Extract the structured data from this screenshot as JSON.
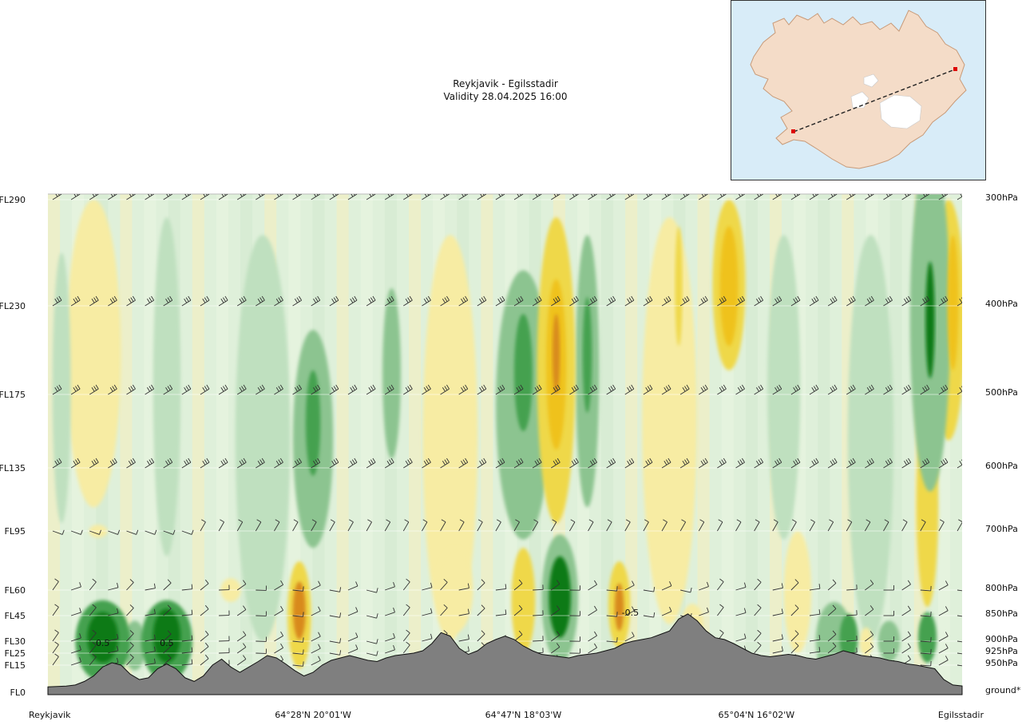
{
  "header": {
    "route": "Reykjavik - Egilsstadir",
    "validity": "Validity 28.04.2025 16:00"
  },
  "map": {
    "region": "Iceland",
    "route_start": "Reykjavik",
    "route_end": "Egilsstadir"
  },
  "chart_data": {
    "type": "heatmap",
    "title": "Reykjavik - Egilsstadir",
    "subtitle": "Validity 28.04.2025 16:00",
    "levels": [
      {
        "fl": "FL290",
        "hpa": "300hPa",
        "alt_ft": 29000
      },
      {
        "fl": "FL230",
        "hpa": "400hPa",
        "alt_ft": 23000
      },
      {
        "fl": "FL175",
        "hpa": "500hPa",
        "alt_ft": 17500
      },
      {
        "fl": "FL135",
        "hpa": "600hPa",
        "alt_ft": 13500
      },
      {
        "fl": "FL95",
        "hpa": "700hPa",
        "alt_ft": 9500
      },
      {
        "fl": "FL60",
        "hpa": "800hPa",
        "alt_ft": 6000
      },
      {
        "fl": "FL45",
        "hpa": "850hPa",
        "alt_ft": 4500
      },
      {
        "fl": "FL30",
        "hpa": "900hPa",
        "alt_ft": 3000
      },
      {
        "fl": "FL25",
        "hpa": "925hPa",
        "alt_ft": 2500
      },
      {
        "fl": "FL15",
        "hpa": "950hPa",
        "alt_ft": 1500
      },
      {
        "fl": "FL0",
        "hpa": "ground*",
        "alt_ft": 0
      }
    ],
    "x_ticks": [
      "Reykjavik",
      "64°28'N 20°01'W",
      "64°47'N 18°03'W",
      "65°04'N 16°02'W",
      "Egilsstadir"
    ],
    "x_tick_fractions": [
      0.0,
      0.29,
      0.52,
      0.775,
      1.0
    ],
    "terrain_ft": [
      300,
      320,
      340,
      400,
      600,
      900,
      1400,
      1700,
      1500,
      1000,
      700,
      800,
      1300,
      1600,
      1300,
      800,
      600,
      900,
      1500,
      2000,
      1400,
      1100,
      1400,
      1800,
      2300,
      2100,
      1600,
      1200,
      900,
      1100,
      1500,
      1900,
      2100,
      2300,
      2100,
      1900,
      1800,
      2100,
      2300,
      2400,
      2500,
      2600,
      2900,
      3500,
      3300,
      2700,
      2400,
      2600,
      2900,
      3100,
      3300,
      3100,
      2800,
      2600,
      2400,
      2300,
      2200,
      2100,
      2300,
      2400,
      2500,
      2600,
      2700,
      2900,
      3000,
      3100,
      3200,
      3400,
      3600,
      4300,
      4600,
      4200,
      3600,
      3200,
      3100,
      2900,
      2700,
      2500,
      2300,
      2200,
      2300,
      2400,
      2300,
      2100,
      2000,
      2200,
      2400,
      2600,
      2500,
      2300,
      2200,
      2100,
      1900,
      1800,
      1600,
      1500,
      1400,
      1300,
      700,
      400,
      350
    ],
    "contour_labels": [
      {
        "text": "0.5",
        "x": 0.06,
        "alt_ft": 2800
      },
      {
        "text": "0.5",
        "x": 0.13,
        "alt_ft": 2800
      },
      {
        "text": "-0.5",
        "x": 0.637,
        "alt_ft": 4500
      }
    ],
    "cells": [
      {
        "x": 0.06,
        "alt_ft": 3000,
        "rx": 0.03,
        "ry_ft": 2400,
        "value": 1.2
      },
      {
        "x": 0.06,
        "alt_ft": 3200,
        "rx": 0.017,
        "ry_ft": 1500,
        "value": 2.0
      },
      {
        "x": 0.13,
        "alt_ft": 3000,
        "rx": 0.028,
        "ry_ft": 2400,
        "value": 1.2
      },
      {
        "x": 0.13,
        "alt_ft": 3300,
        "rx": 0.015,
        "ry_ft": 1600,
        "value": 2.0
      },
      {
        "x": 0.095,
        "alt_ft": 2700,
        "rx": 0.012,
        "ry_ft": 1500,
        "value": 0.8
      },
      {
        "x": 0.055,
        "alt_ft": 9500,
        "rx": 0.01,
        "ry_ft": 400,
        "value": -0.6
      },
      {
        "x": 0.275,
        "alt_ft": 4500,
        "rx": 0.013,
        "ry_ft": 3200,
        "value": -1.0
      },
      {
        "x": 0.275,
        "alt_ft": 4800,
        "rx": 0.007,
        "ry_ft": 1700,
        "value": -1.8
      },
      {
        "x": 0.29,
        "alt_ft": 15000,
        "rx": 0.022,
        "ry_ft": 6500,
        "value": 0.9
      },
      {
        "x": 0.29,
        "alt_ft": 16000,
        "rx": 0.008,
        "ry_ft": 3000,
        "value": 1.6
      },
      {
        "x": 0.376,
        "alt_ft": 19000,
        "rx": 0.01,
        "ry_ft": 5000,
        "value": 0.7
      },
      {
        "x": 0.52,
        "alt_ft": 17000,
        "rx": 0.03,
        "ry_ft": 8000,
        "value": 0.9
      },
      {
        "x": 0.52,
        "alt_ft": 19000,
        "rx": 0.01,
        "ry_ft": 3500,
        "value": 1.6
      },
      {
        "x": 0.556,
        "alt_ft": 19000,
        "rx": 0.021,
        "ry_ft": 9000,
        "value": -1.0
      },
      {
        "x": 0.556,
        "alt_ft": 19500,
        "rx": 0.011,
        "ry_ft": 5000,
        "value": -1.6
      },
      {
        "x": 0.556,
        "alt_ft": 20000,
        "rx": 0.004,
        "ry_ft": 2500,
        "value": -2.3
      },
      {
        "x": 0.59,
        "alt_ft": 19000,
        "rx": 0.013,
        "ry_ft": 8000,
        "value": 0.8
      },
      {
        "x": 0.59,
        "alt_ft": 20000,
        "rx": 0.005,
        "ry_ft": 3500,
        "value": 1.4
      },
      {
        "x": 0.56,
        "alt_ft": 5500,
        "rx": 0.02,
        "ry_ft": 3800,
        "value": 1.1
      },
      {
        "x": 0.56,
        "alt_ft": 5600,
        "rx": 0.012,
        "ry_ft": 2400,
        "value": 2.0
      },
      {
        "x": 0.52,
        "alt_ft": 5500,
        "rx": 0.013,
        "ry_ft": 3000,
        "value": -0.9
      },
      {
        "x": 0.625,
        "alt_ft": 5200,
        "rx": 0.012,
        "ry_ft": 2500,
        "value": -1.1
      },
      {
        "x": 0.625,
        "alt_ft": 5000,
        "rx": 0.005,
        "ry_ft": 1400,
        "value": -2.0
      },
      {
        "x": 0.705,
        "alt_ft": 4000,
        "rx": 0.012,
        "ry_ft": 1200,
        "value": -0.6
      },
      {
        "x": 0.745,
        "alt_ft": 24000,
        "rx": 0.018,
        "ry_ft": 5000,
        "value": -0.7
      },
      {
        "x": 0.745,
        "alt_ft": 24000,
        "rx": 0.01,
        "ry_ft": 3500,
        "value": -1.2
      },
      {
        "x": 0.69,
        "alt_ft": 24000,
        "rx": 0.004,
        "ry_ft": 3500,
        "value": -0.7
      },
      {
        "x": 0.805,
        "alt_ft": 18000,
        "rx": 0.018,
        "ry_ft": 9000,
        "value": 0.6
      },
      {
        "x": 0.86,
        "alt_ft": 3000,
        "rx": 0.02,
        "ry_ft": 2300,
        "value": 0.7
      },
      {
        "x": 0.876,
        "alt_ft": 3200,
        "rx": 0.01,
        "ry_ft": 1400,
        "value": 1.3
      },
      {
        "x": 0.895,
        "alt_ft": 3000,
        "rx": 0.007,
        "ry_ft": 800,
        "value": -0.5
      },
      {
        "x": 0.965,
        "alt_ft": 22000,
        "rx": 0.022,
        "ry_ft": 10000,
        "value": 1.0
      },
      {
        "x": 0.965,
        "alt_ft": 22000,
        "rx": 0.005,
        "ry_ft": 3500,
        "value": 1.8
      },
      {
        "x": 0.985,
        "alt_ft": 22000,
        "rx": 0.018,
        "ry_ft": 7000,
        "value": -0.8
      },
      {
        "x": 0.99,
        "alt_ft": 23000,
        "rx": 0.006,
        "ry_ft": 4000,
        "value": -1.4
      },
      {
        "x": 0.962,
        "alt_ft": 11000,
        "rx": 0.012,
        "ry_ft": 6000,
        "value": -0.9
      },
      {
        "x": 0.962,
        "alt_ft": 3200,
        "rx": 0.01,
        "ry_ft": 1500,
        "value": 1.2
      },
      {
        "x": 0.92,
        "alt_ft": 3000,
        "rx": 0.012,
        "ry_ft": 1200,
        "value": 1.0
      },
      {
        "x": 0.2,
        "alt_ft": 6000,
        "rx": 0.011,
        "ry_ft": 700,
        "value": -0.6
      },
      {
        "x": 0.235,
        "alt_ft": 15000,
        "rx": 0.03,
        "ry_ft": 12000,
        "value": 0.4
      },
      {
        "x": 0.44,
        "alt_ft": 15000,
        "rx": 0.03,
        "ry_ft": 12000,
        "value": -0.4
      },
      {
        "x": 0.68,
        "alt_ft": 16000,
        "rx": 0.03,
        "ry_ft": 12000,
        "value": -0.4
      },
      {
        "x": 0.05,
        "alt_ft": 20000,
        "rx": 0.03,
        "ry_ft": 9000,
        "value": -0.4
      },
      {
        "x": 0.9,
        "alt_ft": 15000,
        "rx": 0.025,
        "ry_ft": 12000,
        "value": 0.4
      },
      {
        "x": 0.13,
        "alt_ft": 18000,
        "rx": 0.015,
        "ry_ft": 10000,
        "value": 0.5
      },
      {
        "x": 0.015,
        "alt_ft": 18000,
        "rx": 0.01,
        "ry_ft": 8000,
        "value": 0.5
      },
      {
        "x": 0.82,
        "alt_ft": 6000,
        "rx": 0.015,
        "ry_ft": 3500,
        "value": -0.5
      },
      {
        "x": 0.445,
        "alt_ft": 6000,
        "rx": 0.02,
        "ry_ft": 2500,
        "value": -0.4
      }
    ],
    "colorbar_note": "vertical motion field: yellow/orange = negative, green = positive"
  }
}
